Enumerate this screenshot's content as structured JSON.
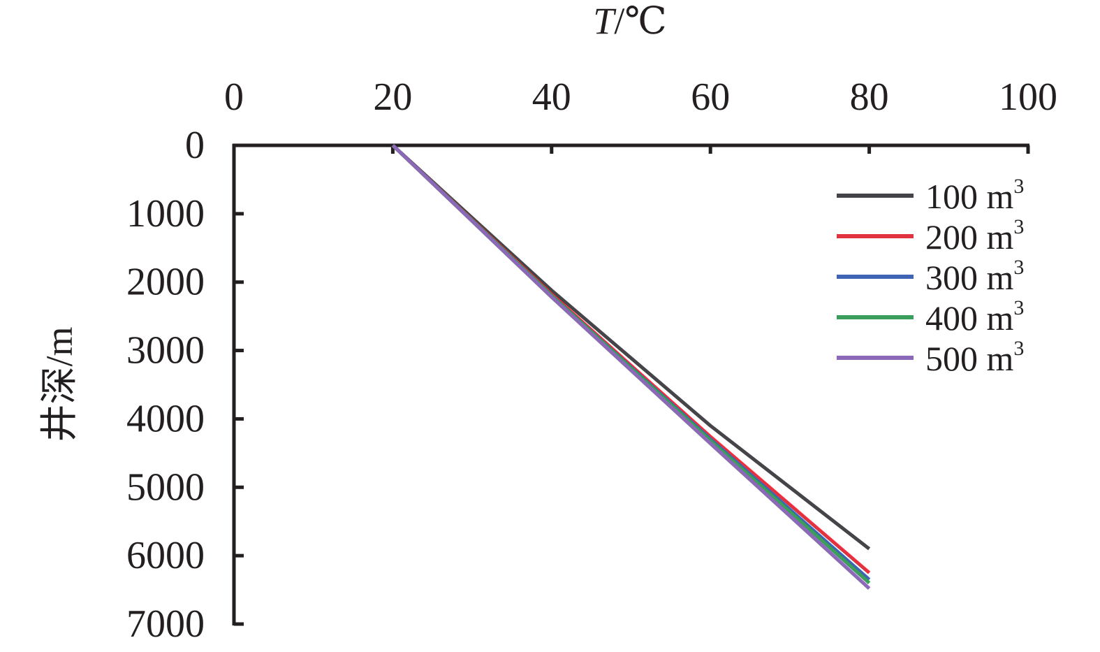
{
  "chart_data": {
    "type": "line",
    "x_axis": {
      "label_italic": "T",
      "label_rest": "/℃",
      "position": "top",
      "ticks": [
        "0",
        "20",
        "40",
        "60",
        "80",
        "100"
      ],
      "range": [
        0,
        100
      ]
    },
    "y_axis": {
      "label": "井深/m",
      "inverted": true,
      "ticks": [
        "0",
        "1000",
        "2000",
        "3000",
        "4000",
        "5000",
        "6000",
        "7000"
      ],
      "range": [
        0,
        7000
      ]
    },
    "grid": false,
    "legend_position": "top-right",
    "series": [
      {
        "name": "100 m",
        "name_sup": "3",
        "color": "#454449",
        "points": [
          [
            20,
            0
          ],
          [
            40,
            2120
          ],
          [
            60,
            4100
          ],
          [
            80,
            5900
          ]
        ]
      },
      {
        "name": "200 m",
        "name_sup": "3",
        "color": "#e2323f",
        "points": [
          [
            20,
            0
          ],
          [
            40,
            2180
          ],
          [
            60,
            4260
          ],
          [
            80,
            6250
          ]
        ]
      },
      {
        "name": "300 m",
        "name_sup": "3",
        "color": "#3f64b4",
        "points": [
          [
            20,
            0
          ],
          [
            40,
            2200
          ],
          [
            60,
            4300
          ],
          [
            80,
            6350
          ]
        ]
      },
      {
        "name": "400 m",
        "name_sup": "3",
        "color": "#3c9e5c",
        "points": [
          [
            20,
            0
          ],
          [
            40,
            2200
          ],
          [
            60,
            4320
          ],
          [
            80,
            6400
          ]
        ]
      },
      {
        "name": "500 m",
        "name_sup": "3",
        "color": "#8b68b8",
        "points": [
          [
            20,
            0
          ],
          [
            40,
            2220
          ],
          [
            60,
            4360
          ],
          [
            80,
            6480
          ]
        ]
      }
    ]
  }
}
